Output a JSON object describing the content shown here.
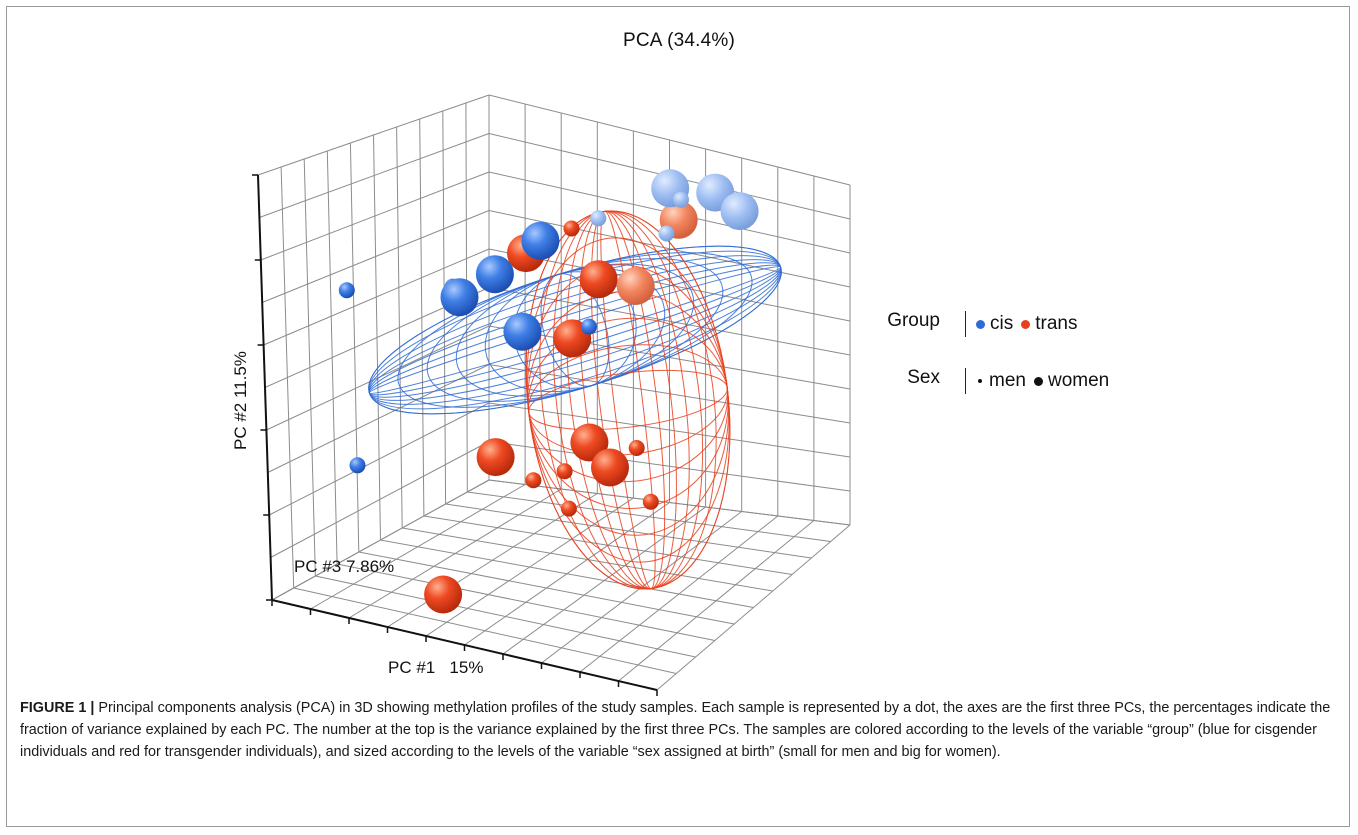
{
  "figure": {
    "title": "PCA (34.4%)",
    "caption_label": "FIGURE 1 |",
    "caption_text": " Principal components analysis (PCA) in 3D showing methylation profiles of the study samples. Each sample is represented by a dot, the axes are the first three PCs, the percentages indicate the fraction of variance explained by each PC. The number at the top is the variance explained by the first three PCs. The samples are colored according to the levels of the variable “group” (blue for cisgender individuals and red for transgender individuals), and sized according to the levels of the variable “sex assigned at birth” (small for men and big for women)."
  },
  "legend": {
    "group_title": "Group",
    "group_items": [
      {
        "label": "cis",
        "color": "#2e6bd6"
      },
      {
        "label": "trans",
        "color": "#e8401c"
      }
    ],
    "sex_title": "Sex",
    "sex_items": [
      {
        "label": "men",
        "size": "small"
      },
      {
        "label": "women",
        "size": "big"
      }
    ]
  },
  "chart_data": {
    "type": "scatter",
    "projection": "3d",
    "title": "PCA (34.4%)",
    "xlabel": "PC #1   15%",
    "ylabel": "PC #2 11.5%",
    "zlabel": "PC #3 7.86%",
    "grid": true,
    "legend_position": "right",
    "colors": {
      "cis": "#2e6bd6",
      "trans": "#e8401c"
    },
    "ellipses": [
      {
        "group": "cis",
        "color": "#2e6bd6"
      },
      {
        "group": "trans",
        "color": "#e8401c"
      }
    ],
    "series": [
      {
        "name": "cis",
        "points": [
          {
            "pc1": -0.55,
            "pc2": 0.62,
            "pc3": 0.1,
            "sex": "men"
          },
          {
            "pc1": -0.2,
            "pc2": 0.62,
            "pc3": 0.25,
            "sex": "men"
          },
          {
            "pc1": -0.02,
            "pc2": 0.68,
            "pc3": 0.1,
            "sex": "women"
          },
          {
            "pc1": 0.05,
            "pc2": 0.72,
            "pc3": 0.2,
            "sex": "women"
          },
          {
            "pc1": 0.12,
            "pc2": 0.77,
            "pc3": 0.35,
            "sex": "women"
          },
          {
            "pc1": 0.3,
            "pc2": 0.82,
            "pc3": 0.45,
            "sex": "men"
          },
          {
            "pc1": 0.55,
            "pc2": 0.9,
            "pc3": 0.55,
            "sex": "women"
          },
          {
            "pc1": 0.72,
            "pc2": 0.88,
            "pc3": 0.6,
            "sex": "women"
          },
          {
            "pc1": 0.82,
            "pc2": 0.82,
            "pc3": 0.62,
            "sex": "women"
          },
          {
            "pc1": 0.58,
            "pc2": 0.78,
            "pc3": 0.5,
            "sex": "men"
          },
          {
            "pc1": 0.4,
            "pc2": 0.55,
            "pc3": 0.3,
            "sex": "men"
          },
          {
            "pc1": 0.18,
            "pc2": 0.55,
            "pc3": 0.2,
            "sex": "women"
          },
          {
            "pc1": 0.65,
            "pc2": 0.9,
            "pc3": 0.5,
            "sex": "men"
          },
          {
            "pc1": -0.45,
            "pc2": 0.08,
            "pc3": 0.05,
            "sex": "men"
          }
        ]
      },
      {
        "name": "trans",
        "points": [
          {
            "pc1": 0.1,
            "pc2": 0.75,
            "pc3": 0.3,
            "sex": "women"
          },
          {
            "pc1": 0.22,
            "pc2": 0.8,
            "pc3": 0.4,
            "sex": "men"
          },
          {
            "pc1": 0.35,
            "pc2": 0.65,
            "pc3": 0.4,
            "sex": "women"
          },
          {
            "pc1": 0.48,
            "pc2": 0.62,
            "pc3": 0.45,
            "sex": "women"
          },
          {
            "pc1": 0.62,
            "pc2": 0.82,
            "pc3": 0.52,
            "sex": "women"
          },
          {
            "pc1": 0.32,
            "pc2": 0.5,
            "pc3": 0.3,
            "sex": "women"
          },
          {
            "pc1": 0.15,
            "pc2": 0.18,
            "pc3": 0.1,
            "sex": "women"
          },
          {
            "pc1": 0.28,
            "pc2": 0.1,
            "pc3": 0.15,
            "sex": "men"
          },
          {
            "pc1": 0.45,
            "pc2": 0.2,
            "pc3": 0.25,
            "sex": "women"
          },
          {
            "pc1": 0.5,
            "pc2": 0.1,
            "pc3": 0.3,
            "sex": "women"
          },
          {
            "pc1": 0.58,
            "pc2": 0.15,
            "pc3": 0.35,
            "sex": "men"
          },
          {
            "pc1": 0.4,
            "pc2": 0.0,
            "pc3": 0.2,
            "sex": "men"
          },
          {
            "pc1": 0.6,
            "pc2": -0.05,
            "pc3": 0.4,
            "sex": "men"
          },
          {
            "pc1": 0.38,
            "pc2": 0.12,
            "pc3": 0.2,
            "sex": "men"
          },
          {
            "pc1": 0.0,
            "pc2": -0.25,
            "pc3": 0.0,
            "sex": "women"
          }
        ]
      }
    ]
  }
}
